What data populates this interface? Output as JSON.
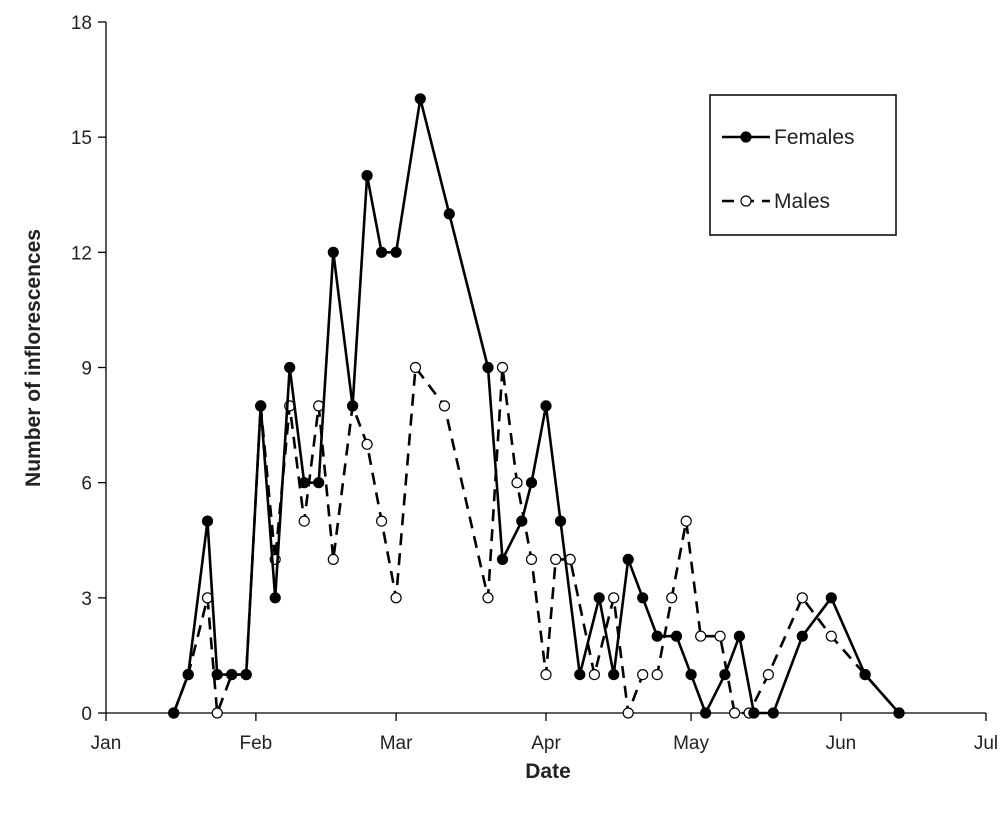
{
  "chart_data": {
    "type": "line",
    "title": "",
    "xlabel": "Date",
    "ylabel": "Number of inflorescences",
    "x_ticks": [
      "Jan",
      "Feb",
      "Mar",
      "Apr",
      "May",
      "Jun",
      "Jul"
    ],
    "x_tick_dates": [
      "2000-01-01",
      "2000-02-01",
      "2000-03-01",
      "2000-04-01",
      "2000-05-01",
      "2000-06-01",
      "2000-07-01"
    ],
    "xlim": [
      "2000-01-01",
      "2000-07-01"
    ],
    "ylim": [
      0,
      18
    ],
    "y_ticks": [
      0,
      3,
      6,
      9,
      12,
      15,
      18
    ],
    "grid": false,
    "legend_position": "top-right",
    "colors": {
      "line": "#000000",
      "open_marker_fill": "#ffffff"
    },
    "series": [
      {
        "name": "Females",
        "style": "solid-filled",
        "points": [
          [
            "2000-01-15",
            0
          ],
          [
            "2000-01-18",
            1
          ],
          [
            "2000-01-22",
            5
          ],
          [
            "2000-01-24",
            1
          ],
          [
            "2000-01-27",
            1
          ],
          [
            "2000-01-30",
            1
          ],
          [
            "2000-02-02",
            8
          ],
          [
            "2000-02-05",
            3
          ],
          [
            "2000-02-08",
            9
          ],
          [
            "2000-02-11",
            6
          ],
          [
            "2000-02-14",
            6
          ],
          [
            "2000-02-17",
            12
          ],
          [
            "2000-02-21",
            8
          ],
          [
            "2000-02-24",
            14
          ],
          [
            "2000-02-27",
            12
          ],
          [
            "2000-03-01",
            12
          ],
          [
            "2000-03-06",
            16
          ],
          [
            "2000-03-12",
            13
          ],
          [
            "2000-03-20",
            9
          ],
          [
            "2000-03-23",
            4
          ],
          [
            "2000-03-27",
            5
          ],
          [
            "2000-03-29",
            6
          ],
          [
            "2000-04-01",
            8
          ],
          [
            "2000-04-04",
            5
          ],
          [
            "2000-04-08",
            1
          ],
          [
            "2000-04-12",
            3
          ],
          [
            "2000-04-15",
            1
          ],
          [
            "2000-04-18",
            4
          ],
          [
            "2000-04-21",
            3
          ],
          [
            "2000-04-24",
            2
          ],
          [
            "2000-04-28",
            2
          ],
          [
            "2000-05-01",
            1
          ],
          [
            "2000-05-04",
            0
          ],
          [
            "2000-05-08",
            1
          ],
          [
            "2000-05-11",
            2
          ],
          [
            "2000-05-14",
            0
          ],
          [
            "2000-05-18",
            0
          ],
          [
            "2000-05-24",
            2
          ],
          [
            "2000-05-30",
            3
          ],
          [
            "2000-06-06",
            1
          ],
          [
            "2000-06-13",
            0
          ]
        ]
      },
      {
        "name": "Males",
        "style": "dashed-open",
        "points": [
          [
            "2000-01-15",
            0
          ],
          [
            "2000-01-18",
            1
          ],
          [
            "2000-01-22",
            3
          ],
          [
            "2000-01-24",
            0
          ],
          [
            "2000-01-27",
            1
          ],
          [
            "2000-01-30",
            1
          ],
          [
            "2000-02-02",
            8
          ],
          [
            "2000-02-05",
            4
          ],
          [
            "2000-02-08",
            8
          ],
          [
            "2000-02-11",
            5
          ],
          [
            "2000-02-14",
            8
          ],
          [
            "2000-02-17",
            4
          ],
          [
            "2000-02-21",
            8
          ],
          [
            "2000-02-24",
            7
          ],
          [
            "2000-02-27",
            5
          ],
          [
            "2000-03-01",
            3
          ],
          [
            "2000-03-05",
            9
          ],
          [
            "2000-03-11",
            8
          ],
          [
            "2000-03-20",
            3
          ],
          [
            "2000-03-23",
            9
          ],
          [
            "2000-03-26",
            6
          ],
          [
            "2000-03-29",
            4
          ],
          [
            "2000-04-01",
            1
          ],
          [
            "2000-04-03",
            4
          ],
          [
            "2000-04-06",
            4
          ],
          [
            "2000-04-11",
            1
          ],
          [
            "2000-04-15",
            3
          ],
          [
            "2000-04-18",
            0
          ],
          [
            "2000-04-21",
            1
          ],
          [
            "2000-04-24",
            1
          ],
          [
            "2000-04-27",
            3
          ],
          [
            "2000-04-30",
            5
          ],
          [
            "2000-05-03",
            2
          ],
          [
            "2000-05-07",
            2
          ],
          [
            "2000-05-10",
            0
          ],
          [
            "2000-05-13",
            0
          ],
          [
            "2000-05-17",
            1
          ],
          [
            "2000-05-24",
            3
          ],
          [
            "2000-05-30",
            2
          ],
          [
            "2000-06-06",
            1
          ],
          [
            "2000-06-13",
            0
          ]
        ]
      }
    ]
  }
}
